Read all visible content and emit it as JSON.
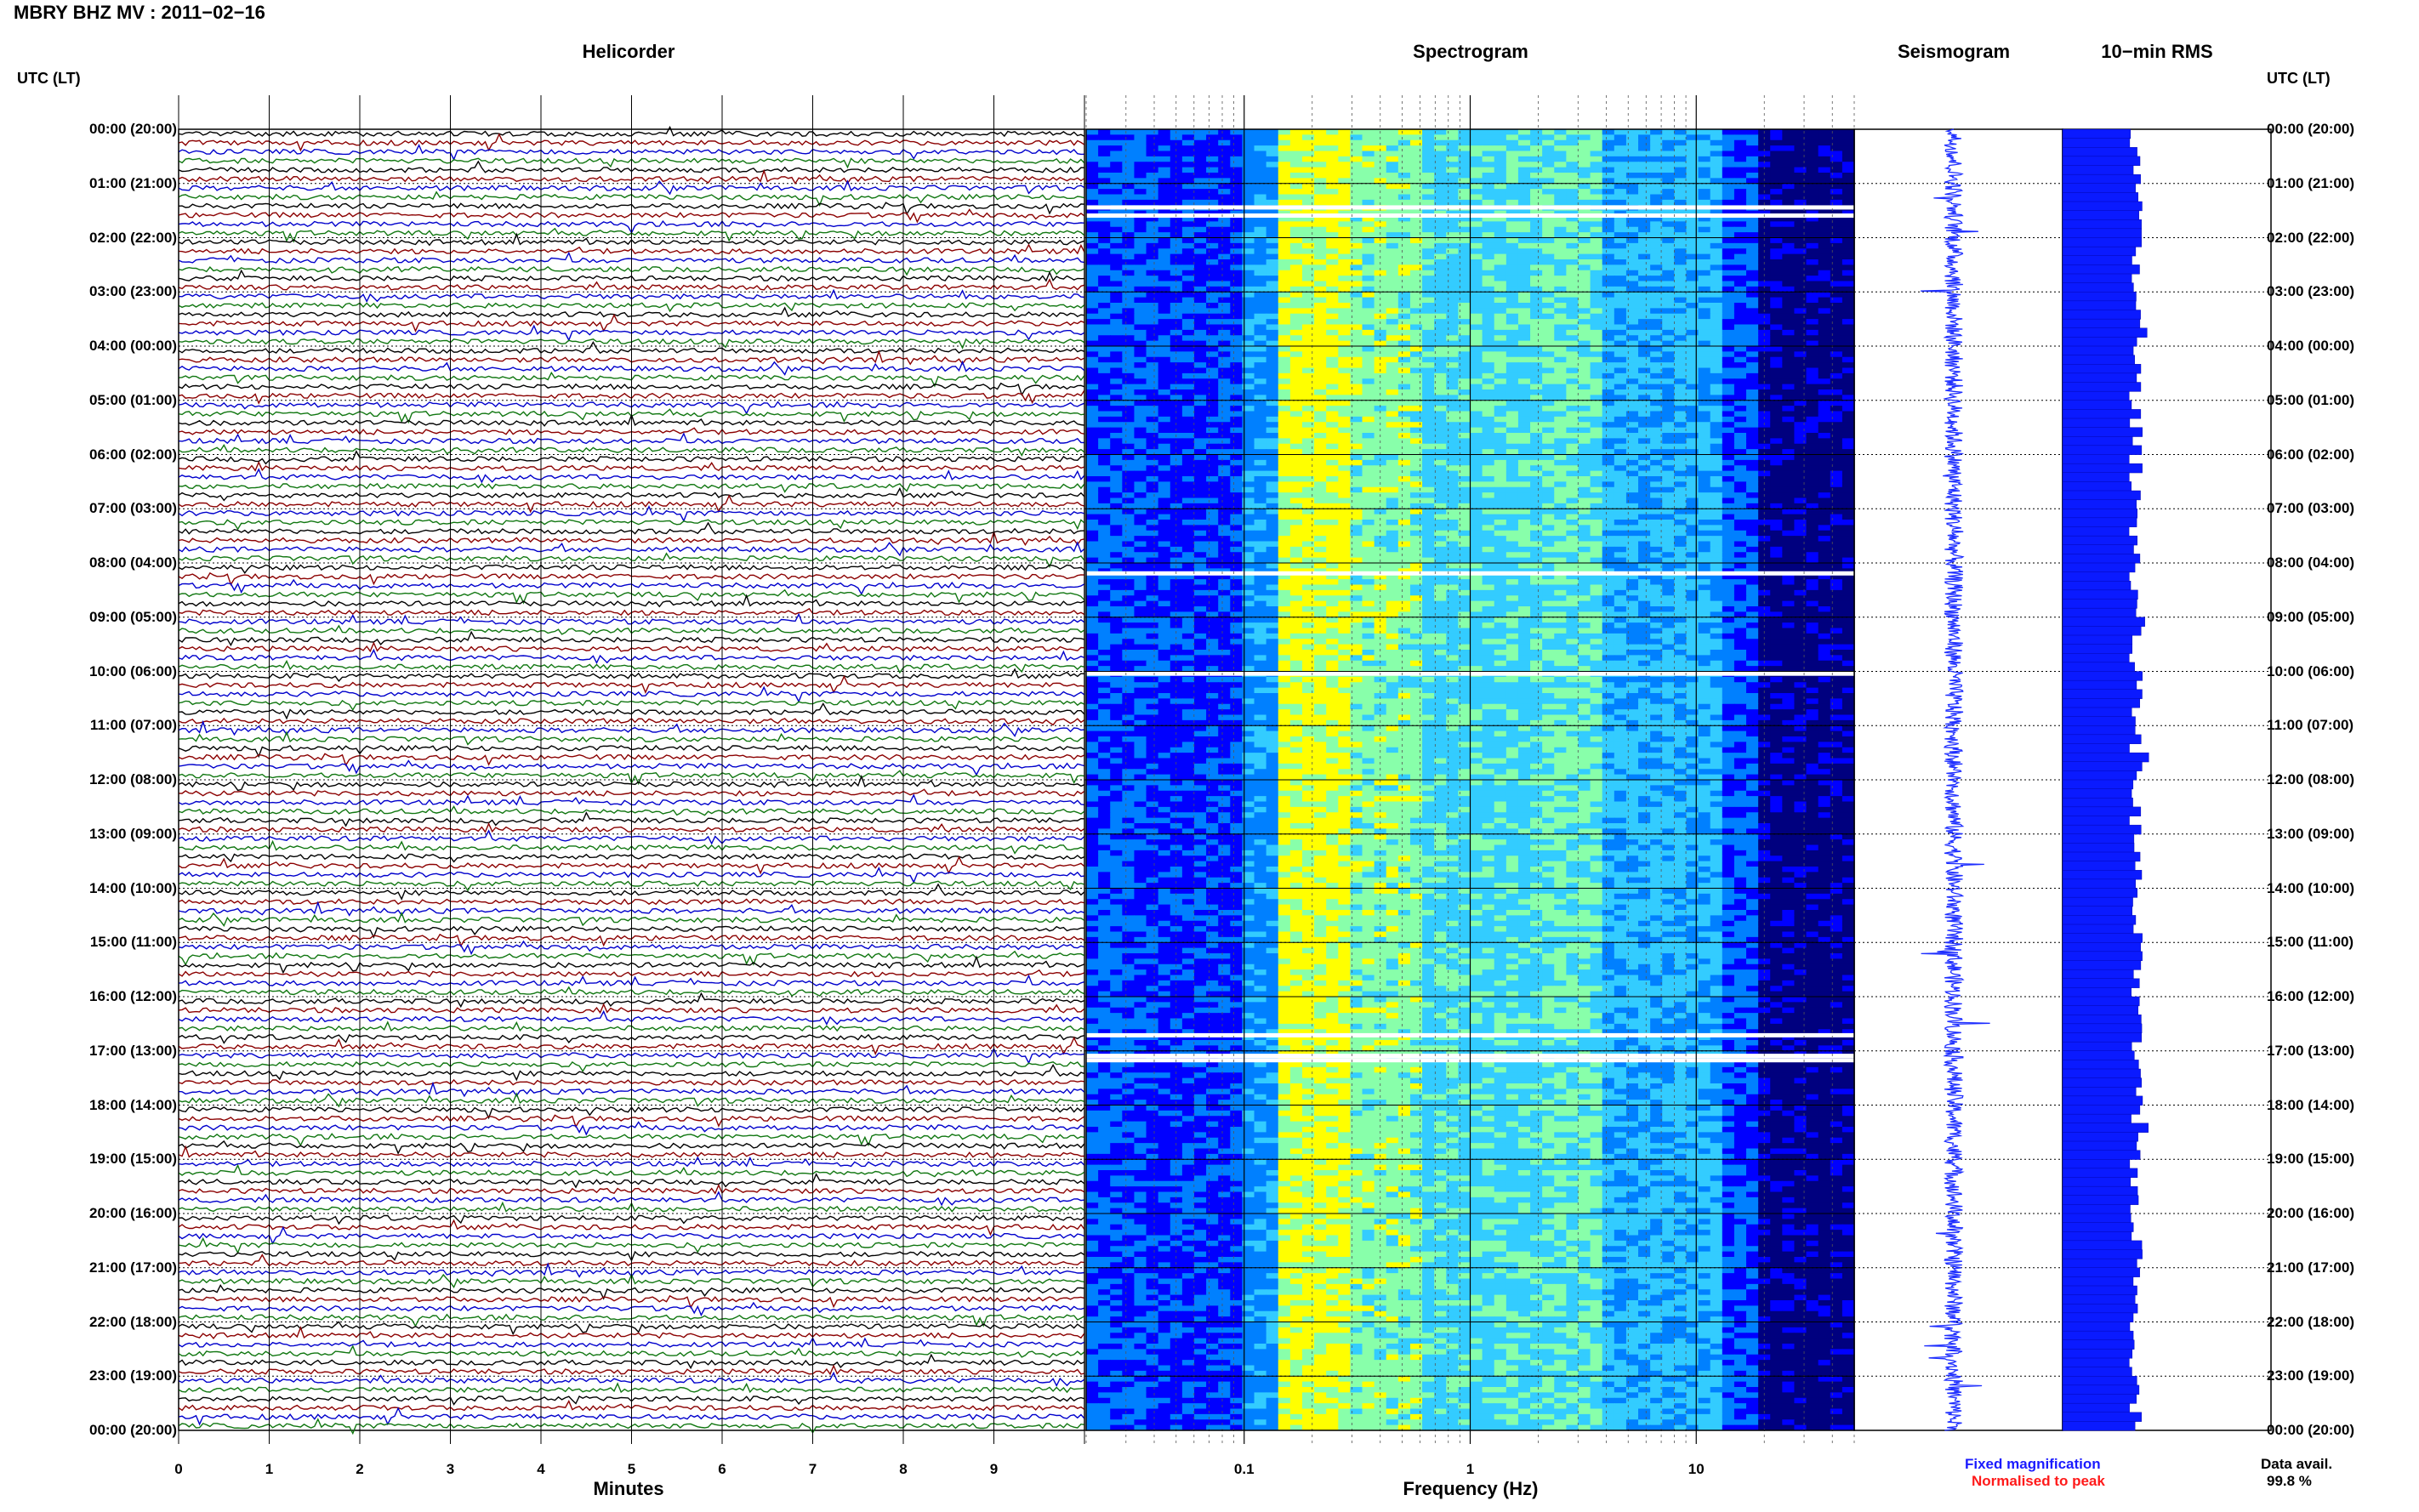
{
  "header": {
    "title": "MBRY BHZ MV : 2011−02−16",
    "utc_label_left": "UTC (LT)",
    "utc_label_right": "UTC (LT)"
  },
  "colors": {
    "trace_cycle": [
      "#000000",
      "#8b0000",
      "#0000cc",
      "#117711"
    ],
    "spectrogram": [
      "#00007f",
      "#0000ff",
      "#0080ff",
      "#33ccff",
      "#88ffaa",
      "#ffff00"
    ],
    "seismogram": "#1f2fff",
    "rms": "#0a1aff"
  },
  "time_labels": [
    "00:00 (20:00)",
    "01:00 (21:00)",
    "02:00 (22:00)",
    "03:00 (23:00)",
    "04:00 (00:00)",
    "05:00 (01:00)",
    "06:00 (02:00)",
    "07:00 (03:00)",
    "08:00 (04:00)",
    "09:00 (05:00)",
    "10:00 (06:00)",
    "11:00 (07:00)",
    "12:00 (08:00)",
    "13:00 (09:00)",
    "14:00 (10:00)",
    "15:00 (11:00)",
    "16:00 (12:00)",
    "17:00 (13:00)",
    "18:00 (14:00)",
    "19:00 (15:00)",
    "20:00 (16:00)",
    "21:00 (17:00)",
    "22:00 (18:00)",
    "23:00 (19:00)",
    "00:00 (20:00)"
  ],
  "chart_data": [
    {
      "type": "line",
      "title": "Helicorder",
      "xlabel": "Minutes",
      "ylabel": "UTC (LT)",
      "xlim": [
        0,
        10
      ],
      "x_ticks": [
        "0",
        "1",
        "2",
        "3",
        "4",
        "5",
        "6",
        "7",
        "8",
        "9"
      ],
      "traces_per_hour": 6,
      "hours": 24,
      "grid": true
    },
    {
      "type": "heatmap",
      "title": "Spectrogram",
      "xlabel": "Frequency (Hz)",
      "x_scale": "log",
      "xlim": [
        0.02,
        50
      ],
      "x_ticks": [
        "0.1",
        "1",
        "10"
      ],
      "data_gaps_hours": [
        1.45,
        1.6,
        8.2,
        10.05,
        16.72,
        17.1,
        17.18
      ]
    },
    {
      "type": "line",
      "title": "Seismogram",
      "legend": [
        "Fixed magnification",
        "Normalised to peak"
      ],
      "legend_placement": "bottom"
    },
    {
      "type": "bar",
      "title": "10−min RMS",
      "bins": 144,
      "grid": true
    }
  ],
  "footer": {
    "legend_fixed": "Fixed magnification",
    "legend_normalised": "Normalised to peak",
    "data_avail_label": "Data avail.",
    "data_avail_value": "99.8 %"
  }
}
